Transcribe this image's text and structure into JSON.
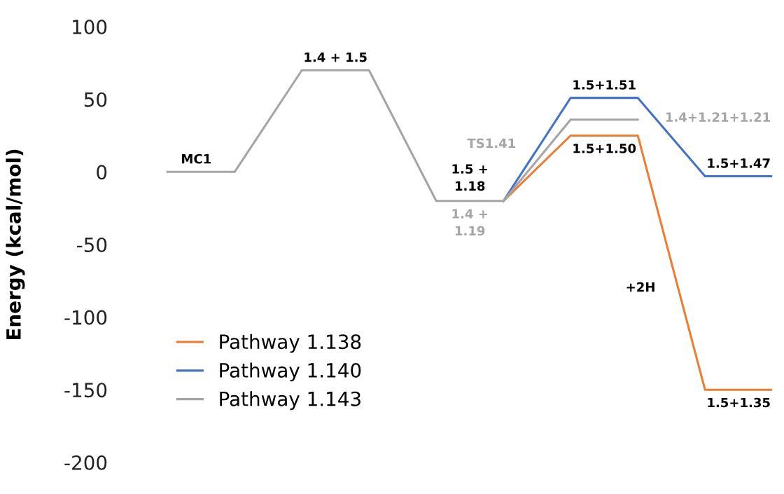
{
  "chart_data": {
    "type": "line",
    "ylabel": "Energy (kcal/mol)",
    "categories": [
      null,
      null,
      null,
      null,
      null,
      null,
      null,
      null,
      null,
      null
    ],
    "series": [
      {
        "name": "Pathway 1.138",
        "color": "#ed7d31",
        "values": [
          null,
          null,
          null,
          null,
          null,
          -20,
          25,
          25,
          -150,
          -150
        ]
      },
      {
        "name": "Pathway 1.140",
        "color": "#4472c4",
        "values": [
          null,
          null,
          null,
          null,
          null,
          -20,
          51,
          51,
          -3,
          -3
        ]
      },
      {
        "name": "Pathway 1.143",
        "color": "#a5a5a5",
        "values": [
          0,
          0,
          70,
          70,
          -20,
          -20,
          36,
          36,
          null,
          null
        ]
      }
    ],
    "annotations": [
      {
        "text": "MC1",
        "y": 0
      },
      {
        "text": "1.4 + 1.5",
        "y": 70
      },
      {
        "text": "1.5 +\n1.18",
        "y": -20
      },
      {
        "text": "1.4 +\n1.19",
        "y": -20
      },
      "TS1.41",
      {
        "text": "1.5+1.51",
        "y": 51
      },
      {
        "text": "1.5+1.50",
        "y": 25
      },
      "1.4+1.21+1.21",
      {
        "text": "1.5+1.47",
        "y": -3
      },
      "+2H",
      {
        "text": "1.5+1.35",
        "y": -150
      }
    ],
    "ylim": [
      -200,
      100
    ],
    "yticks": [
      -200,
      -150,
      -100,
      -50,
      0,
      50,
      100
    ],
    "legend": "bottom left",
    "grid": false,
    "marker": "none",
    "line_style": "solid"
  }
}
